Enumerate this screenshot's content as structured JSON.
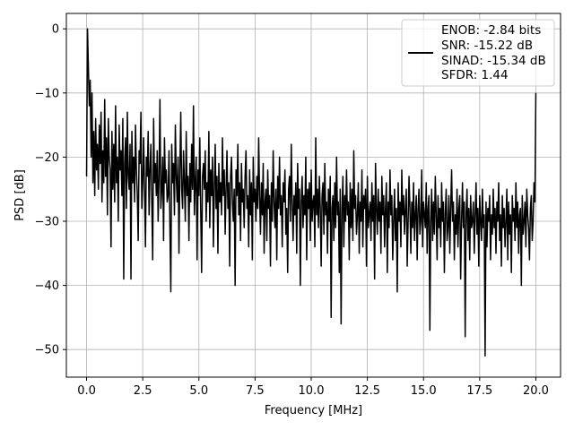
{
  "chart_data": {
    "type": "line",
    "xlabel": "Frequency [MHz]",
    "ylabel": "PSD [dB]",
    "xlim": [
      -0.9,
      21.1
    ],
    "ylim": [
      -54.3,
      2.4
    ],
    "x_ticks": [
      0.0,
      2.5,
      5.0,
      7.5,
      10.0,
      12.5,
      15.0,
      17.5,
      20.0
    ],
    "x_tick_labels": [
      "0.0",
      "2.5",
      "5.0",
      "7.5",
      "10.0",
      "12.5",
      "15.0",
      "17.5",
      "20.0"
    ],
    "y_ticks": [
      0,
      -10,
      -20,
      -30,
      -40,
      -50
    ],
    "y_tick_labels": [
      "0",
      "−10",
      "−20",
      "−30",
      "−40",
      "−50"
    ],
    "grid": true,
    "legend_position": "top-right",
    "line_color": "#000000",
    "legend": {
      "lines": [
        "ENOB: -2.84 bits",
        "SNR: -15.22 dB",
        "SINAD: -15.34 dB",
        "SFDR: 1.44"
      ]
    },
    "series": [
      {
        "x_start": 0.0,
        "x_end": 20.0,
        "values": [
          -23,
          0,
          -6,
          -12,
          -8,
          -20,
          -10,
          -24,
          -16,
          -26,
          -14,
          -22,
          -18,
          -25,
          -15,
          -21,
          -13,
          -27,
          -19,
          -24,
          -11,
          -23,
          -17,
          -29,
          -14,
          -20,
          -22,
          -34,
          -16,
          -25,
          -18,
          -27,
          -12,
          -24,
          -20,
          -30,
          -15,
          -22,
          -19,
          -26,
          -14,
          -39,
          -21,
          -17,
          -28,
          -13,
          -23,
          -25,
          -18,
          -39,
          -16,
          -24,
          -20,
          -27,
          -15,
          -22,
          -26,
          -33,
          -19,
          -21,
          -13,
          -28,
          -24,
          -17,
          -25,
          -34,
          -20,
          -23,
          -16,
          -29,
          -22,
          -18,
          -27,
          -36,
          -14,
          -24,
          -21,
          -26,
          -19,
          -30,
          -23,
          -11,
          -28,
          -25,
          -20,
          -33,
          -17,
          -24,
          -22,
          -27,
          -26,
          -19,
          -31,
          -41,
          -18,
          -24,
          -21,
          -29,
          -15,
          -23,
          -27,
          -20,
          -35,
          -22,
          -13,
          -25,
          -28,
          -19,
          -24,
          -30,
          -16,
          -26,
          -23,
          -33,
          -21,
          -27,
          -18,
          -25,
          -12,
          -29,
          -24,
          -20,
          -36,
          -22,
          -26,
          -17,
          -28,
          -38,
          -23,
          -21,
          -25,
          -19,
          -30,
          -24,
          -27,
          -16,
          -31,
          -22,
          -26,
          -20,
          -34,
          -25,
          -18,
          -28,
          -23,
          -35,
          -21,
          -27,
          -24,
          -29,
          -17,
          -26,
          -22,
          -32,
          -25,
          -19,
          -28,
          -24,
          -37,
          -23,
          -20,
          -27,
          -30,
          -25,
          -40,
          -22,
          -26,
          -18,
          -29,
          -24,
          -33,
          -21,
          -27,
          -25,
          -31,
          -23,
          -19,
          -28,
          -26,
          -34,
          -22,
          -29,
          -24,
          -36,
          -20,
          -27,
          -25,
          -30,
          -23,
          -28,
          -17,
          -26,
          -32,
          -24,
          -29,
          -21,
          -35,
          -27,
          -25,
          -33,
          -22,
          -28,
          -26,
          -37,
          -24,
          -30,
          -19,
          -27,
          -31,
          -25,
          -36,
          -23,
          -28,
          -20,
          -29,
          -26,
          -34,
          -24,
          -27,
          -22,
          -32,
          -28,
          -38,
          -25,
          -23,
          -30,
          -18,
          -27,
          -33,
          -26,
          -29,
          -24,
          -35,
          -21,
          -28,
          -25,
          -40,
          -27,
          -23,
          -31,
          -26,
          -29,
          -20,
          -36,
          -25,
          -28,
          -24,
          -33,
          -22,
          -30,
          -27,
          -26,
          -34,
          -17,
          -29,
          -25,
          -31,
          -23,
          -28,
          -37,
          -26,
          -24,
          -32,
          -21,
          -29,
          -27,
          -35,
          -25,
          -30,
          -23,
          -45,
          -28,
          -26,
          -33,
          -24,
          -31,
          -20,
          -29,
          -27,
          -38,
          -25,
          -46,
          -28,
          -23,
          -34,
          -26,
          -30,
          -22,
          -29,
          -27,
          -36,
          -24,
          -31,
          -25,
          -33,
          -19,
          -28,
          -26,
          -32,
          -29,
          -24,
          -35,
          -27,
          -30,
          -22,
          -34,
          -26,
          -28,
          -25,
          -37,
          -23,
          -31,
          -29,
          -27,
          -33,
          -24,
          -30,
          -26,
          -39,
          -21,
          -28,
          -32,
          -25,
          -30,
          -27,
          -35,
          -23,
          -29,
          -26,
          -34,
          -28,
          -24,
          -38,
          -27,
          -31,
          -22,
          -29,
          -26,
          -36,
          -30,
          -25,
          -33,
          -28,
          -41,
          -24,
          -30,
          -27,
          -34,
          -22,
          -29,
          -26,
          -32,
          -28,
          -25,
          -37,
          -30,
          -23,
          -28,
          -35,
          -27,
          -31,
          -24,
          -33,
          -29,
          -26,
          -36,
          -28,
          -25,
          -32,
          -30,
          -22,
          -34,
          -27,
          -29,
          -31,
          -24,
          -35,
          -28,
          -26,
          -47,
          -30,
          -25,
          -33,
          -27,
          -32,
          -23,
          -29,
          -36,
          -26,
          -31,
          -28,
          -34,
          -24,
          -30,
          -27,
          -38,
          -29,
          -25,
          -33,
          -31,
          -26,
          -35,
          -28,
          -22,
          -30,
          -27,
          -36,
          -29,
          -32,
          -25,
          -34,
          -28,
          -26,
          -39,
          -30,
          -24,
          -31,
          -27,
          -48,
          -29,
          -25,
          -33,
          -28,
          -36,
          -26,
          -31,
          -30,
          -27,
          -35,
          -29,
          -24,
          -32,
          -28,
          -37,
          -26,
          -30,
          -33,
          -25,
          -31,
          -29,
          -51,
          -27,
          -34,
          -28,
          -30,
          -26,
          -36,
          -29,
          -32,
          -25,
          -31,
          -28,
          -35,
          -27,
          -30,
          -24,
          -33,
          -29,
          -37,
          -26,
          -31,
          -28,
          -34,
          -30,
          -25,
          -36,
          -27,
          -32,
          -29,
          -38,
          -26,
          -30,
          -28,
          -33,
          -24,
          -31,
          -27,
          -35,
          -29,
          -28,
          -40,
          -26,
          -32,
          -30,
          -27,
          -34,
          -25,
          -29,
          -31,
          -36,
          -28,
          -26,
          -33,
          -30,
          -24,
          -27,
          -10
        ]
      }
    ]
  }
}
